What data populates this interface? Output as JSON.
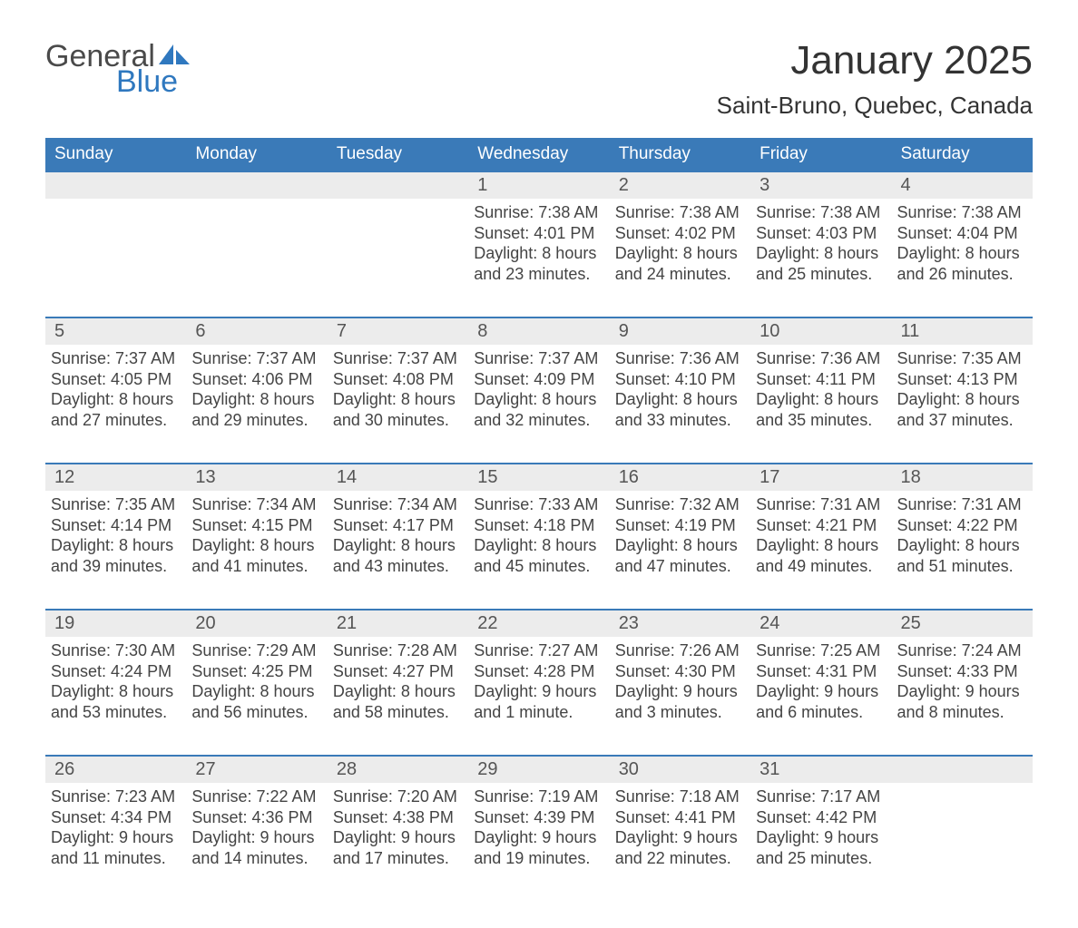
{
  "logo": {
    "general": "General",
    "blue": "Blue"
  },
  "header": {
    "month": "January 2025",
    "location": "Saint-Bruno, Quebec, Canada"
  },
  "styling": {
    "header_bg": "#3a7ab8",
    "header_text": "#ffffff",
    "week_border": "#3a7ab8",
    "daynum_bg": "#ececec",
    "daynum_color": "#555555",
    "body_text": "#444444",
    "title_color": "#333333",
    "page_bg": "#ffffff",
    "month_fontsize": 44,
    "location_fontsize": 26,
    "weekday_fontsize": 19,
    "daynum_fontsize": 20,
    "body_fontsize": 18
  },
  "weekdays": [
    "Sunday",
    "Monday",
    "Tuesday",
    "Wednesday",
    "Thursday",
    "Friday",
    "Saturday"
  ],
  "weeks": [
    [
      {
        "n": "",
        "sunrise": "",
        "sunset": "",
        "day1": "",
        "day2": ""
      },
      {
        "n": "",
        "sunrise": "",
        "sunset": "",
        "day1": "",
        "day2": ""
      },
      {
        "n": "",
        "sunrise": "",
        "sunset": "",
        "day1": "",
        "day2": ""
      },
      {
        "n": "1",
        "sunrise": "Sunrise: 7:38 AM",
        "sunset": "Sunset: 4:01 PM",
        "day1": "Daylight: 8 hours",
        "day2": "and 23 minutes."
      },
      {
        "n": "2",
        "sunrise": "Sunrise: 7:38 AM",
        "sunset": "Sunset: 4:02 PM",
        "day1": "Daylight: 8 hours",
        "day2": "and 24 minutes."
      },
      {
        "n": "3",
        "sunrise": "Sunrise: 7:38 AM",
        "sunset": "Sunset: 4:03 PM",
        "day1": "Daylight: 8 hours",
        "day2": "and 25 minutes."
      },
      {
        "n": "4",
        "sunrise": "Sunrise: 7:38 AM",
        "sunset": "Sunset: 4:04 PM",
        "day1": "Daylight: 8 hours",
        "day2": "and 26 minutes."
      }
    ],
    [
      {
        "n": "5",
        "sunrise": "Sunrise: 7:37 AM",
        "sunset": "Sunset: 4:05 PM",
        "day1": "Daylight: 8 hours",
        "day2": "and 27 minutes."
      },
      {
        "n": "6",
        "sunrise": "Sunrise: 7:37 AM",
        "sunset": "Sunset: 4:06 PM",
        "day1": "Daylight: 8 hours",
        "day2": "and 29 minutes."
      },
      {
        "n": "7",
        "sunrise": "Sunrise: 7:37 AM",
        "sunset": "Sunset: 4:08 PM",
        "day1": "Daylight: 8 hours",
        "day2": "and 30 minutes."
      },
      {
        "n": "8",
        "sunrise": "Sunrise: 7:37 AM",
        "sunset": "Sunset: 4:09 PM",
        "day1": "Daylight: 8 hours",
        "day2": "and 32 minutes."
      },
      {
        "n": "9",
        "sunrise": "Sunrise: 7:36 AM",
        "sunset": "Sunset: 4:10 PM",
        "day1": "Daylight: 8 hours",
        "day2": "and 33 minutes."
      },
      {
        "n": "10",
        "sunrise": "Sunrise: 7:36 AM",
        "sunset": "Sunset: 4:11 PM",
        "day1": "Daylight: 8 hours",
        "day2": "and 35 minutes."
      },
      {
        "n": "11",
        "sunrise": "Sunrise: 7:35 AM",
        "sunset": "Sunset: 4:13 PM",
        "day1": "Daylight: 8 hours",
        "day2": "and 37 minutes."
      }
    ],
    [
      {
        "n": "12",
        "sunrise": "Sunrise: 7:35 AM",
        "sunset": "Sunset: 4:14 PM",
        "day1": "Daylight: 8 hours",
        "day2": "and 39 minutes."
      },
      {
        "n": "13",
        "sunrise": "Sunrise: 7:34 AM",
        "sunset": "Sunset: 4:15 PM",
        "day1": "Daylight: 8 hours",
        "day2": "and 41 minutes."
      },
      {
        "n": "14",
        "sunrise": "Sunrise: 7:34 AM",
        "sunset": "Sunset: 4:17 PM",
        "day1": "Daylight: 8 hours",
        "day2": "and 43 minutes."
      },
      {
        "n": "15",
        "sunrise": "Sunrise: 7:33 AM",
        "sunset": "Sunset: 4:18 PM",
        "day1": "Daylight: 8 hours",
        "day2": "and 45 minutes."
      },
      {
        "n": "16",
        "sunrise": "Sunrise: 7:32 AM",
        "sunset": "Sunset: 4:19 PM",
        "day1": "Daylight: 8 hours",
        "day2": "and 47 minutes."
      },
      {
        "n": "17",
        "sunrise": "Sunrise: 7:31 AM",
        "sunset": "Sunset: 4:21 PM",
        "day1": "Daylight: 8 hours",
        "day2": "and 49 minutes."
      },
      {
        "n": "18",
        "sunrise": "Sunrise: 7:31 AM",
        "sunset": "Sunset: 4:22 PM",
        "day1": "Daylight: 8 hours",
        "day2": "and 51 minutes."
      }
    ],
    [
      {
        "n": "19",
        "sunrise": "Sunrise: 7:30 AM",
        "sunset": "Sunset: 4:24 PM",
        "day1": "Daylight: 8 hours",
        "day2": "and 53 minutes."
      },
      {
        "n": "20",
        "sunrise": "Sunrise: 7:29 AM",
        "sunset": "Sunset: 4:25 PM",
        "day1": "Daylight: 8 hours",
        "day2": "and 56 minutes."
      },
      {
        "n": "21",
        "sunrise": "Sunrise: 7:28 AM",
        "sunset": "Sunset: 4:27 PM",
        "day1": "Daylight: 8 hours",
        "day2": "and 58 minutes."
      },
      {
        "n": "22",
        "sunrise": "Sunrise: 7:27 AM",
        "sunset": "Sunset: 4:28 PM",
        "day1": "Daylight: 9 hours",
        "day2": "and 1 minute."
      },
      {
        "n": "23",
        "sunrise": "Sunrise: 7:26 AM",
        "sunset": "Sunset: 4:30 PM",
        "day1": "Daylight: 9 hours",
        "day2": "and 3 minutes."
      },
      {
        "n": "24",
        "sunrise": "Sunrise: 7:25 AM",
        "sunset": "Sunset: 4:31 PM",
        "day1": "Daylight: 9 hours",
        "day2": "and 6 minutes."
      },
      {
        "n": "25",
        "sunrise": "Sunrise: 7:24 AM",
        "sunset": "Sunset: 4:33 PM",
        "day1": "Daylight: 9 hours",
        "day2": "and 8 minutes."
      }
    ],
    [
      {
        "n": "26",
        "sunrise": "Sunrise: 7:23 AM",
        "sunset": "Sunset: 4:34 PM",
        "day1": "Daylight: 9 hours",
        "day2": "and 11 minutes."
      },
      {
        "n": "27",
        "sunrise": "Sunrise: 7:22 AM",
        "sunset": "Sunset: 4:36 PM",
        "day1": "Daylight: 9 hours",
        "day2": "and 14 minutes."
      },
      {
        "n": "28",
        "sunrise": "Sunrise: 7:20 AM",
        "sunset": "Sunset: 4:38 PM",
        "day1": "Daylight: 9 hours",
        "day2": "and 17 minutes."
      },
      {
        "n": "29",
        "sunrise": "Sunrise: 7:19 AM",
        "sunset": "Sunset: 4:39 PM",
        "day1": "Daylight: 9 hours",
        "day2": "and 19 minutes."
      },
      {
        "n": "30",
        "sunrise": "Sunrise: 7:18 AM",
        "sunset": "Sunset: 4:41 PM",
        "day1": "Daylight: 9 hours",
        "day2": "and 22 minutes."
      },
      {
        "n": "31",
        "sunrise": "Sunrise: 7:17 AM",
        "sunset": "Sunset: 4:42 PM",
        "day1": "Daylight: 9 hours",
        "day2": "and 25 minutes."
      },
      {
        "n": "",
        "sunrise": "",
        "sunset": "",
        "day1": "",
        "day2": ""
      }
    ]
  ]
}
